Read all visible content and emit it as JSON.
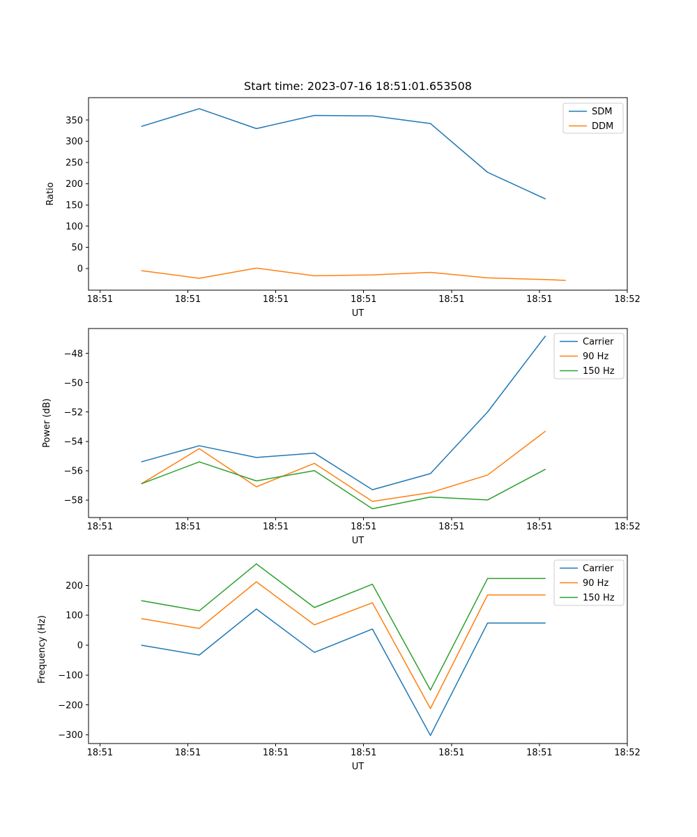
{
  "figure": {
    "title": "Start time: 2023-07-16 18:51:01.653508",
    "background": "#ffffff",
    "axis_color": "#000000",
    "legend_border_color": "#cccccc"
  },
  "chart_data": [
    {
      "type": "line",
      "title": "Start time: 2023-07-16 18:51:01.653508",
      "xlabel": "UT",
      "ylabel": "Ratio",
      "ylim": [
        -51,
        403
      ],
      "xlim_seconds": [
        -1.3,
        60
      ],
      "grid": false,
      "legend": {
        "position": "upper right",
        "entries": [
          "SDM",
          "DDM"
        ]
      },
      "yticks": [
        {
          "v": 0,
          "label": "0"
        },
        {
          "v": 50,
          "label": "50"
        },
        {
          "v": 100,
          "label": "100"
        },
        {
          "v": 150,
          "label": "150"
        },
        {
          "v": 200,
          "label": "200"
        },
        {
          "v": 250,
          "label": "250"
        },
        {
          "v": 300,
          "label": "300"
        },
        {
          "v": 350,
          "label": "350"
        }
      ],
      "xticks": [
        {
          "v": 0,
          "label": "18:51"
        },
        {
          "v": 10,
          "label": "18:51"
        },
        {
          "v": 20,
          "label": "18:51"
        },
        {
          "v": 30,
          "label": "18:51"
        },
        {
          "v": 40,
          "label": "18:51"
        },
        {
          "v": 50,
          "label": "18:51"
        },
        {
          "v": 60,
          "label": "18:52"
        }
      ],
      "series": [
        {
          "name": "SDM",
          "color": "#1f77b4",
          "x": [
            4.7,
            11.3,
            17.8,
            24.4,
            31.0,
            37.6,
            44.1,
            50.7
          ],
          "y": [
            335,
            377,
            330,
            361,
            360,
            342,
            227,
            164
          ]
        },
        {
          "name": "DDM",
          "color": "#ff7f0e",
          "x": [
            4.7,
            11.3,
            17.8,
            24.4,
            31.0,
            37.6,
            44.1,
            50.7,
            53.0
          ],
          "y": [
            -5,
            -23,
            1,
            -17,
            -15,
            -9,
            -22,
            -26,
            -28
          ]
        }
      ]
    },
    {
      "type": "line",
      "title": "",
      "xlabel": "UT",
      "ylabel": "Power (dB)",
      "ylim": [
        -59.2,
        -46.3
      ],
      "xlim_seconds": [
        -1.3,
        60
      ],
      "grid": false,
      "legend": {
        "position": "upper right",
        "entries": [
          "Carrier",
          "90 Hz",
          "150 Hz"
        ]
      },
      "yticks": [
        {
          "v": -48,
          "label": "−48"
        },
        {
          "v": -50,
          "label": "−50"
        },
        {
          "v": -52,
          "label": "−52"
        },
        {
          "v": -54,
          "label": "−54"
        },
        {
          "v": -56,
          "label": "−56"
        },
        {
          "v": -58,
          "label": "−58"
        }
      ],
      "xticks": [
        {
          "v": 0,
          "label": "18:51"
        },
        {
          "v": 10,
          "label": "18:51"
        },
        {
          "v": 20,
          "label": "18:51"
        },
        {
          "v": 30,
          "label": "18:51"
        },
        {
          "v": 40,
          "label": "18:51"
        },
        {
          "v": 50,
          "label": "18:51"
        },
        {
          "v": 60,
          "label": "18:52"
        }
      ],
      "series": [
        {
          "name": "Carrier",
          "color": "#1f77b4",
          "x": [
            4.7,
            11.3,
            17.8,
            24.4,
            31.0,
            37.6,
            44.1,
            50.7
          ],
          "y": [
            -55.4,
            -54.3,
            -55.1,
            -54.8,
            -57.3,
            -56.2,
            -52.0,
            -46.8
          ]
        },
        {
          "name": "90 Hz",
          "color": "#ff7f0e",
          "x": [
            4.7,
            11.3,
            17.8,
            24.4,
            31.0,
            37.6,
            44.1,
            50.7
          ],
          "y": [
            -56.9,
            -54.5,
            -57.1,
            -55.5,
            -58.1,
            -57.5,
            -56.3,
            -53.3
          ]
        },
        {
          "name": "150 Hz",
          "color": "#2ca02c",
          "x": [
            4.7,
            11.3,
            17.8,
            24.4,
            31.0,
            37.6,
            44.1,
            50.7
          ],
          "y": [
            -56.9,
            -55.4,
            -56.7,
            -56.0,
            -58.6,
            -57.8,
            -58.0,
            -55.9
          ]
        }
      ]
    },
    {
      "type": "line",
      "title": "",
      "xlabel": "UT",
      "ylabel": "Frequency (Hz)",
      "ylim": [
        -329,
        301
      ],
      "xlim_seconds": [
        -1.3,
        60
      ],
      "grid": false,
      "legend": {
        "position": "upper right",
        "entries": [
          "Carrier",
          "90 Hz",
          "150 Hz"
        ]
      },
      "yticks": [
        {
          "v": 200,
          "label": "200"
        },
        {
          "v": 100,
          "label": "100"
        },
        {
          "v": 0,
          "label": "0"
        },
        {
          "v": -100,
          "label": "−100"
        },
        {
          "v": -200,
          "label": "−200"
        },
        {
          "v": -300,
          "label": "−300"
        }
      ],
      "xticks": [
        {
          "v": 0,
          "label": "18:51"
        },
        {
          "v": 10,
          "label": "18:51"
        },
        {
          "v": 20,
          "label": "18:51"
        },
        {
          "v": 30,
          "label": "18:51"
        },
        {
          "v": 40,
          "label": "18:51"
        },
        {
          "v": 50,
          "label": "18:51"
        },
        {
          "v": 60,
          "label": "18:52"
        }
      ],
      "series": [
        {
          "name": "Carrier",
          "color": "#1f77b4",
          "x": [
            4.7,
            11.3,
            17.8,
            24.4,
            31.0,
            37.6,
            44.1,
            50.7
          ],
          "y": [
            0,
            -33,
            121,
            -24,
            54,
            -302,
            74,
            74
          ]
        },
        {
          "name": "90 Hz",
          "color": "#ff7f0e",
          "x": [
            4.7,
            11.3,
            17.8,
            24.4,
            31.0,
            37.6,
            44.1,
            50.7
          ],
          "y": [
            89,
            56,
            212,
            68,
            142,
            -212,
            168,
            168
          ]
        },
        {
          "name": "150 Hz",
          "color": "#2ca02c",
          "x": [
            4.7,
            11.3,
            17.8,
            24.4,
            31.0,
            37.6,
            44.1,
            50.7
          ],
          "y": [
            149,
            115,
            272,
            126,
            204,
            -150,
            223,
            223
          ]
        }
      ]
    }
  ]
}
